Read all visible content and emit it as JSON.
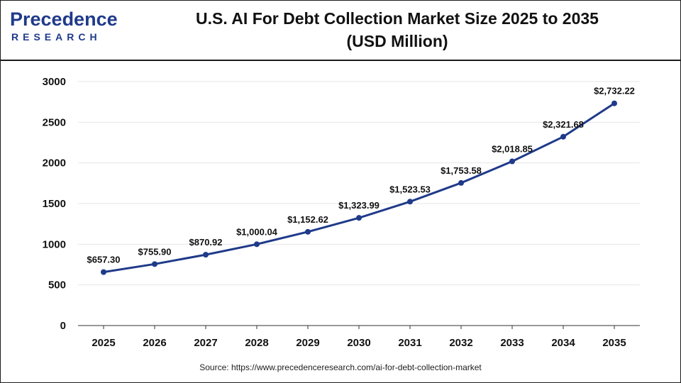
{
  "header": {
    "logo_top": "Precedence",
    "logo_bottom": "RESEARCH",
    "title_line1": "U.S. AI For Debt Collection Market Size 2025 to 2035",
    "title_line2": "(USD Million)"
  },
  "footer": {
    "source": "Source: https://www.precedenceresearch.com/ai-for-debt-collection-market"
  },
  "colors": {
    "line": "#1f3a8a",
    "marker": "#1f3a8a",
    "axis": "#333333",
    "grid": "#e6e6e6"
  },
  "chart_data": {
    "type": "line",
    "title": "U.S. AI For Debt Collection Market Size 2025 to 2035 (USD Million)",
    "xlabel": "",
    "ylabel": "",
    "categories": [
      "2025",
      "2026",
      "2027",
      "2028",
      "2029",
      "2030",
      "2031",
      "2032",
      "2033",
      "2034",
      "2035"
    ],
    "values": [
      657.3,
      755.9,
      870.92,
      1000.04,
      1152.62,
      1323.99,
      1523.53,
      1753.58,
      2018.85,
      2321.68,
      2732.22
    ],
    "data_labels": [
      "$657.30",
      "$755.90",
      "$870.92",
      "$1,000.04",
      "$1,152.62",
      "$1,323.99",
      "$1,523.53",
      "$1,753.58",
      "$2,018.85",
      "$2,321.68",
      "$2,732.22"
    ],
    "yticks": [
      0,
      500,
      1000,
      1500,
      2000,
      2500,
      3000
    ],
    "ylim": [
      0,
      3000
    ],
    "grid": true,
    "legend": "none"
  }
}
